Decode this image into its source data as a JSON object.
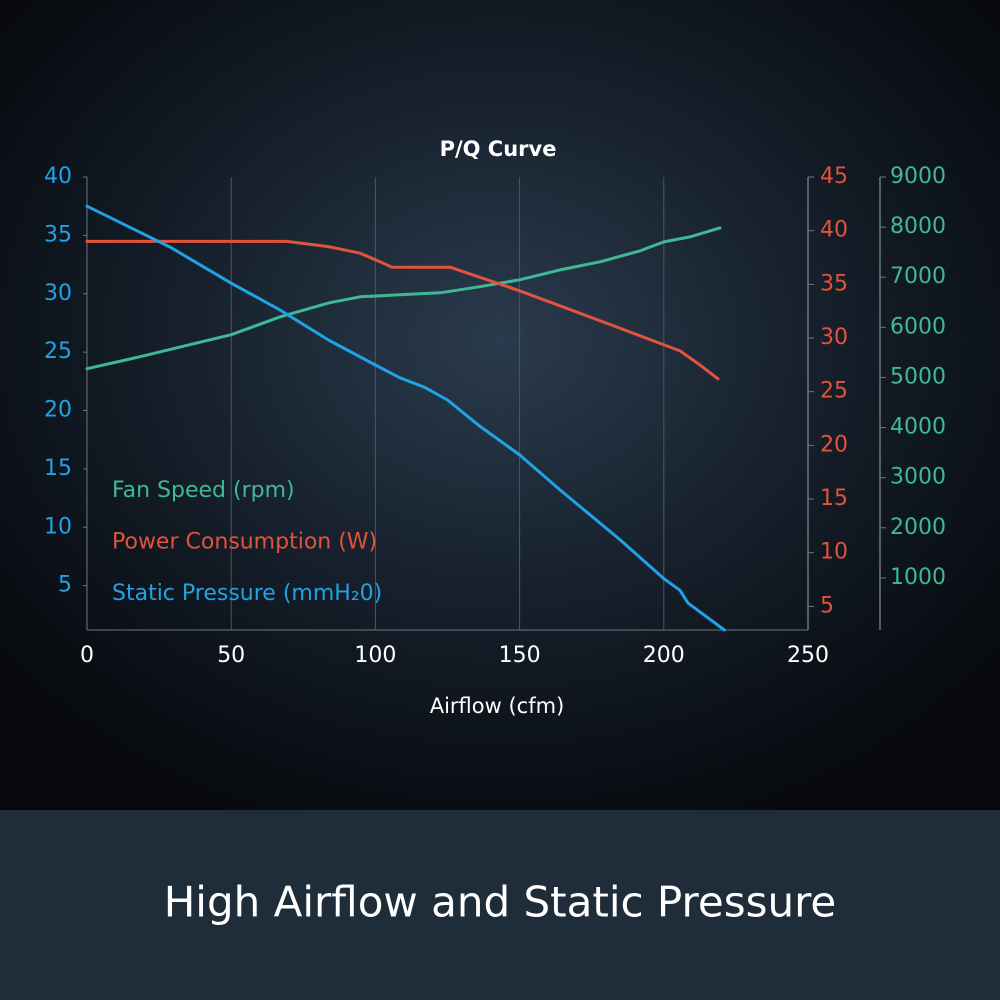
{
  "chart_data": {
    "type": "line",
    "title": "P/Q Curve",
    "x_label": "Airflow (cfm)",
    "banner": "High Airflow and Static Pressure",
    "xlim": [
      0,
      250
    ],
    "xticks": [
      0,
      50,
      100,
      150,
      200,
      250
    ],
    "grid": true,
    "ylim": [
      1.2,
      40
    ],
    "yticks": [
      5,
      10,
      15,
      20,
      25,
      30,
      35,
      40
    ],
    "y2lim": [
      2.8,
      45
    ],
    "y2ticks": [
      5,
      10,
      15,
      20,
      25,
      30,
      35,
      40,
      45
    ],
    "y3lim": [
      -40,
      9000
    ],
    "y3ticks": [
      1000,
      2000,
      3000,
      4000,
      5000,
      6000,
      7000,
      8000,
      9000
    ],
    "series": [
      {
        "name": "Fan Speed (rpm)",
        "color": "#3fb896",
        "axis": "y3",
        "x": [
          0,
          18.4,
          50,
          67,
          84,
          94.7,
          108.5,
          122.4,
          136,
          150,
          164,
          177.9,
          191.7,
          200,
          209,
          219.5
        ],
        "values": [
          5175,
          5414,
          5853,
          6211,
          6490,
          6610,
          6649,
          6689,
          6809,
          6948,
          7147,
          7307,
          7526,
          7705,
          7805,
          7984
        ]
      },
      {
        "name": "Power Consumption (W)",
        "color": "#e2533b",
        "axis": "y2",
        "x": [
          0,
          69.3,
          84,
          94.7,
          100,
          105.8,
          125.9,
          150,
          164,
          185,
          198.7,
          205.6,
          212.5,
          218.8
        ],
        "values": [
          39.0,
          39.0,
          38.5,
          37.9,
          37.3,
          36.6,
          36.6,
          34.4,
          33.0,
          30.9,
          29.5,
          28.8,
          27.5,
          26.2
        ]
      },
      {
        "name": "Static Pressure (mmH₂0)",
        "color": "#1fa3e6",
        "axis": "y",
        "x": [
          0,
          28.8,
          50,
          67,
          84,
          100,
          108.5,
          117,
          125,
          136,
          150,
          164,
          185,
          200,
          205.6,
          208.4,
          221
        ],
        "values": [
          37.5,
          34.0,
          30.9,
          28.6,
          26.0,
          23.9,
          22.8,
          22.0,
          20.9,
          18.7,
          16.2,
          13.2,
          8.9,
          5.6,
          4.6,
          3.5,
          1.2
        ]
      }
    ]
  }
}
